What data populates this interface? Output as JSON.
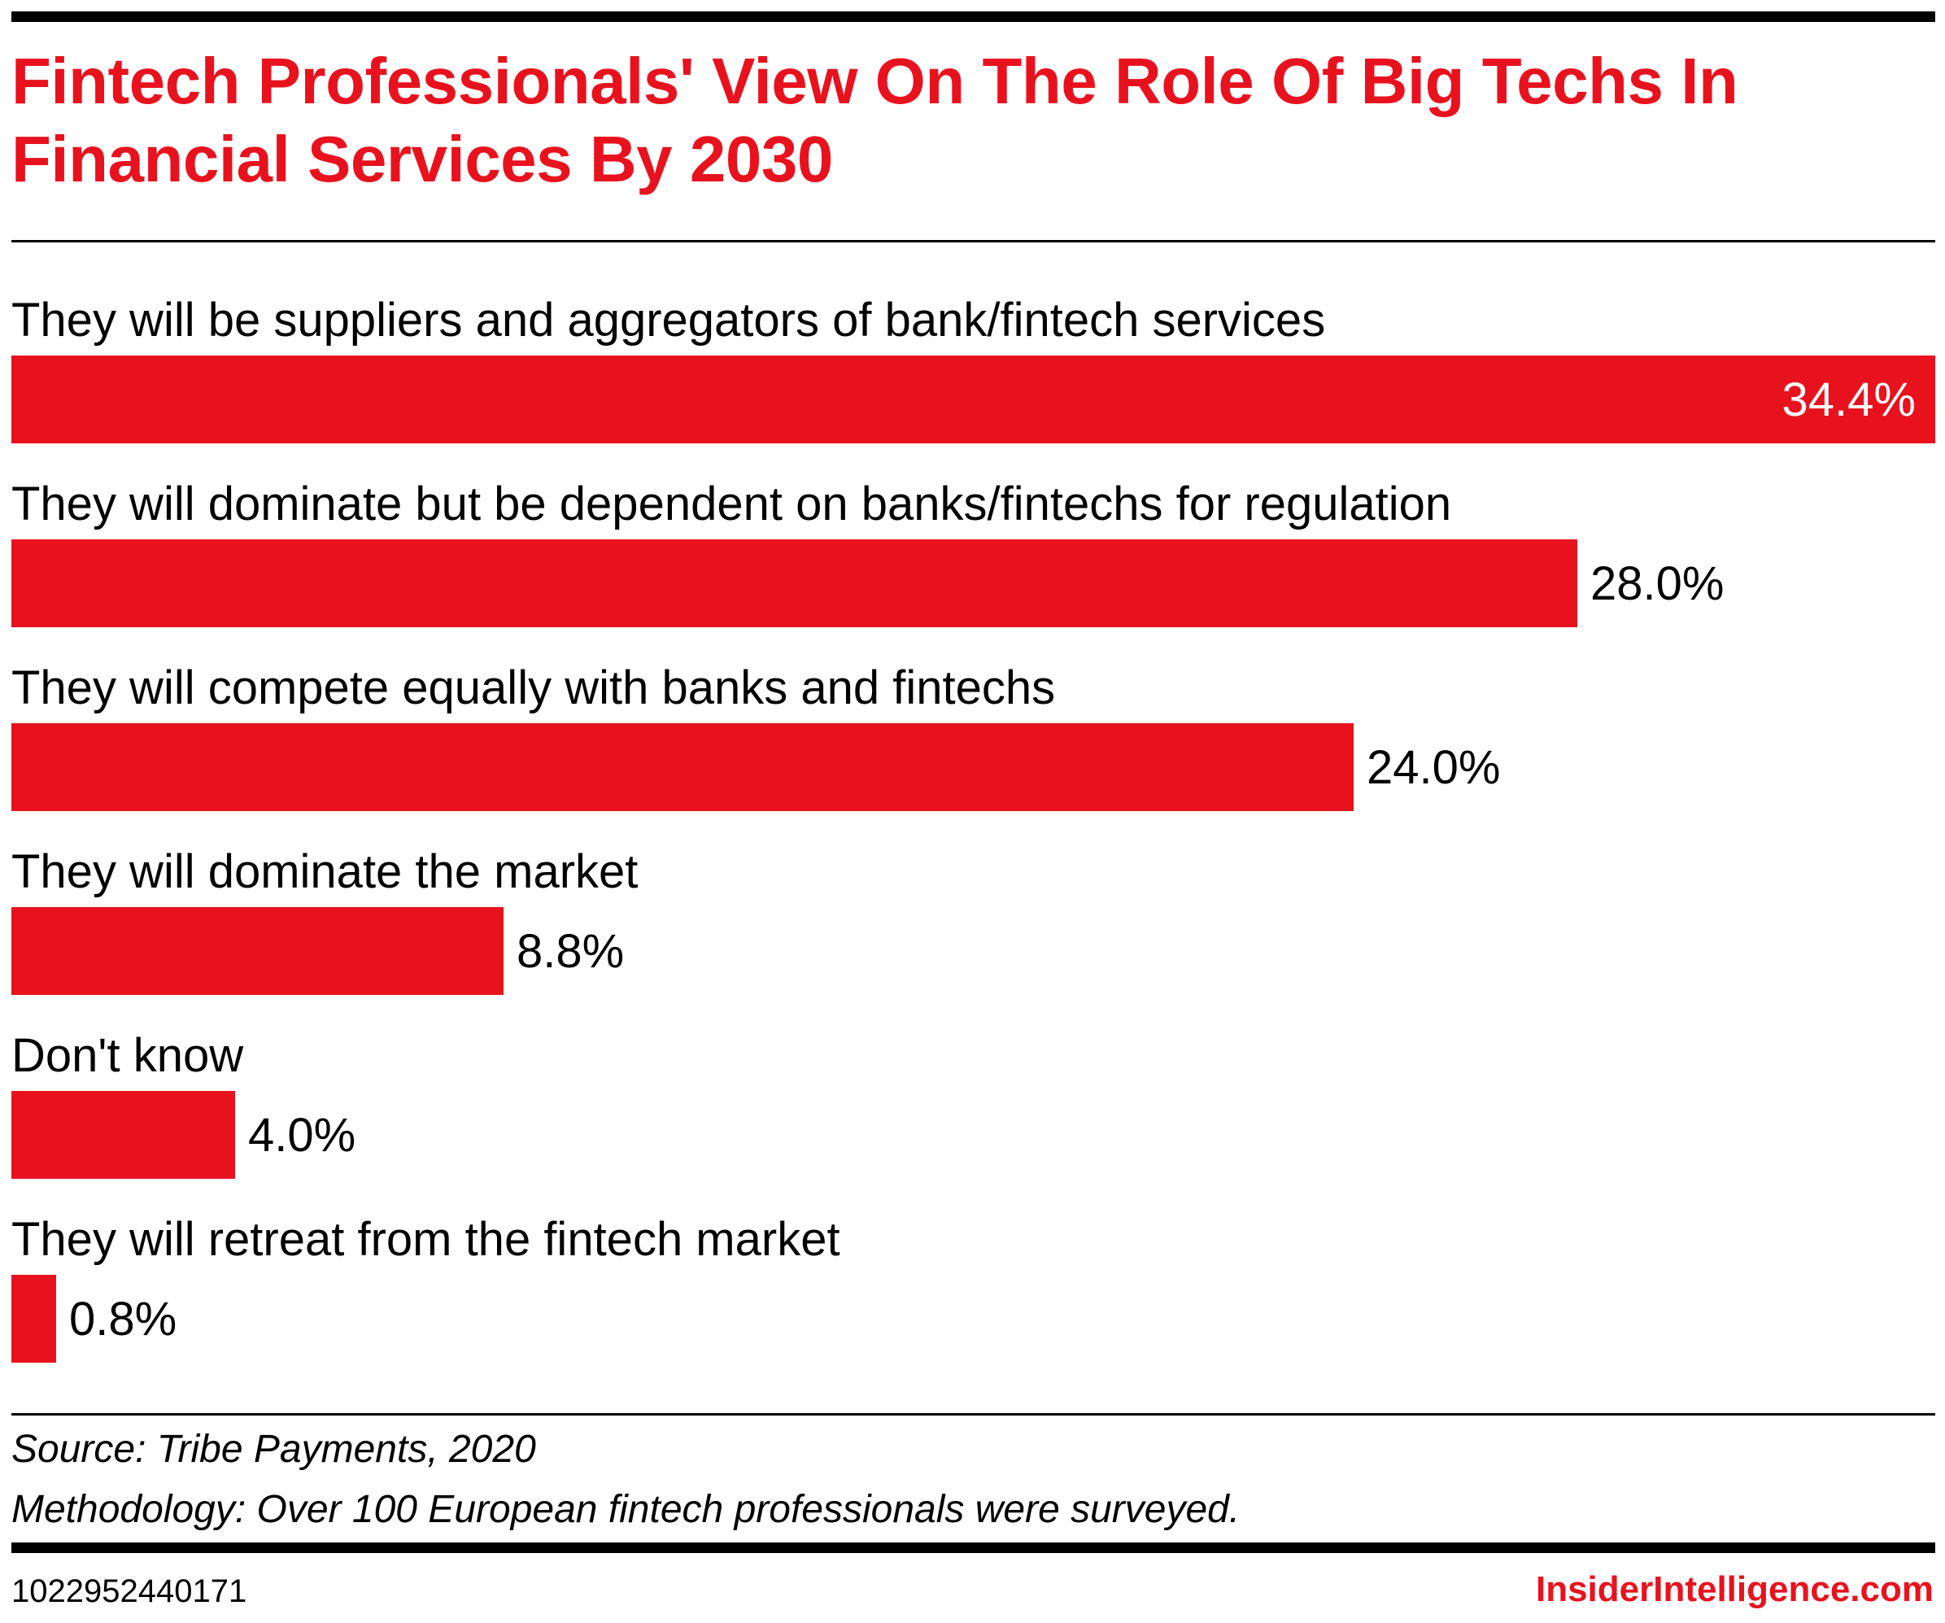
{
  "header": {
    "title": "Fintech Professionals' View On The Role Of Big Techs In Financial Services By 2030"
  },
  "chart_data": {
    "type": "bar",
    "orientation": "horizontal",
    "title": "Fintech Professionals' View On The Role Of Big Techs In Financial Services By 2030",
    "xlabel": "",
    "ylabel": "",
    "xlim": [
      0,
      34.4
    ],
    "grid": false,
    "categories": [
      "They will be suppliers and aggregators of bank/fintech services",
      "They will dominate but be dependent on banks/fintechs for regulation",
      "They will compete equally with banks and fintechs",
      "They will dominate the market",
      "Don't know",
      "They will retreat from the fintech market"
    ],
    "values": [
      34.4,
      28.0,
      24.0,
      8.8,
      4.0,
      0.8
    ],
    "value_labels": [
      "34.4%",
      "28.0%",
      "24.0%",
      "8.8%",
      "4.0%",
      "0.8%"
    ],
    "bar_color": "#e8121e"
  },
  "footer": {
    "source": "Source: Tribe Payments, 2020",
    "methodology": "Methodology: Over 100 European fintech professionals were surveyed.",
    "chart_id": "1022952440171",
    "brand": "InsiderIntelligence.com"
  },
  "colors": {
    "accent": "#e8121e",
    "text": "#000000",
    "background": "#ffffff"
  }
}
